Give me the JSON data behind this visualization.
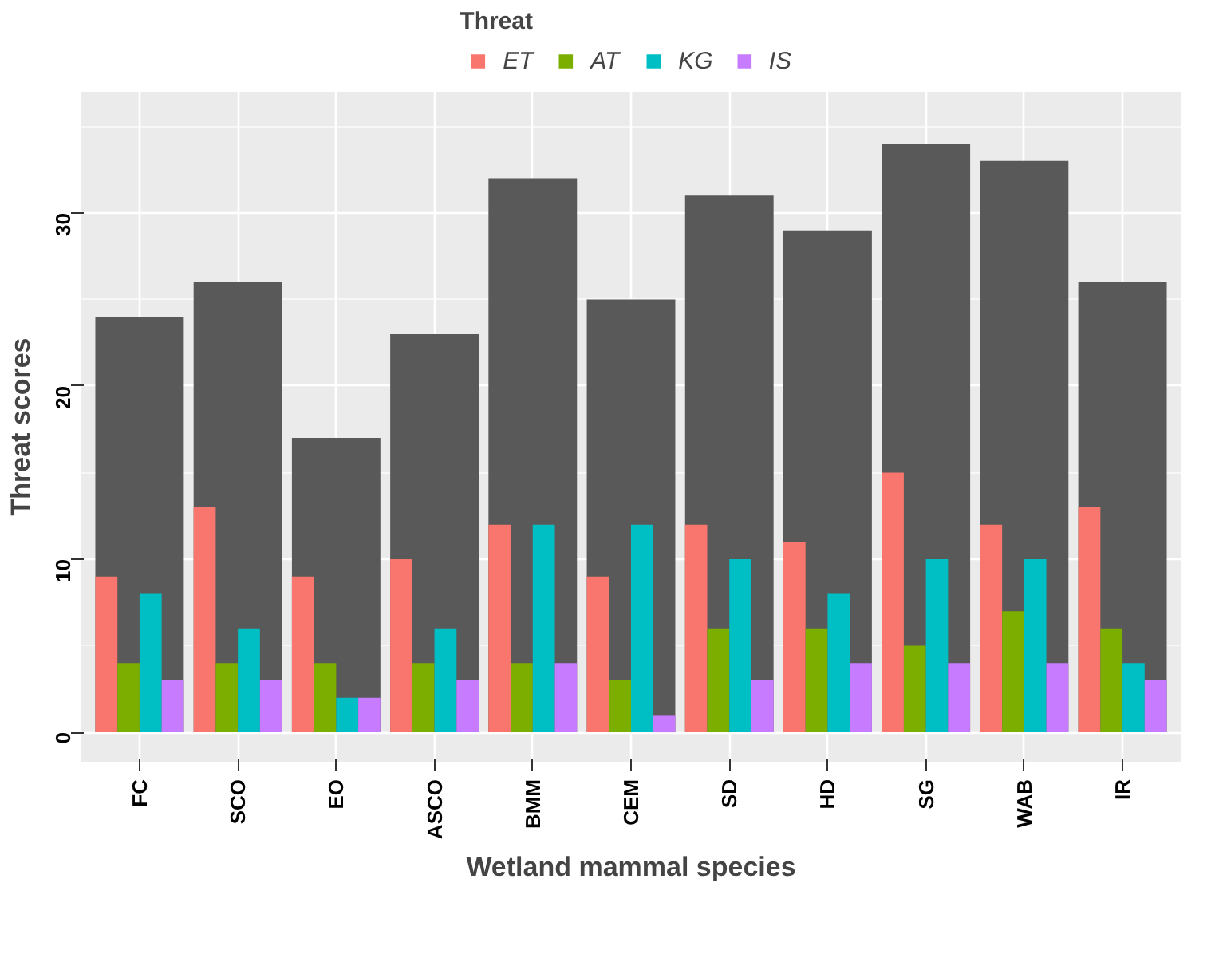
{
  "chart_data": {
    "type": "bar",
    "xlabel": "Wetland mammal species",
    "ylabel": "Threat scores",
    "legend_title": "Threat",
    "legend": "top",
    "categories": [
      "FC",
      "SCO",
      "EO",
      "ASCO",
      "BMM",
      "CEM",
      "SD",
      "HD",
      "SG",
      "WAB",
      "IR"
    ],
    "series": [
      {
        "color": "#595959",
        "values": [
          24,
          26,
          17,
          23,
          32,
          25,
          31,
          29,
          34,
          33,
          26
        ]
      },
      {
        "name": "ET",
        "color": "#f8766d",
        "values": [
          9,
          13,
          9,
          10,
          12,
          9,
          12,
          11,
          15,
          12,
          13
        ]
      },
      {
        "name": "AT",
        "color": "#7cae00",
        "values": [
          4,
          4,
          4,
          4,
          4,
          3,
          6,
          6,
          5,
          7,
          6
        ]
      },
      {
        "name": "KG",
        "color": "#00bfc4",
        "values": [
          8,
          6,
          2,
          6,
          12,
          12,
          10,
          8,
          10,
          10,
          4
        ]
      },
      {
        "name": "IS",
        "color": "#c77cff",
        "values": [
          3,
          3,
          2,
          3,
          4,
          1,
          3,
          4,
          4,
          4,
          3
        ]
      }
    ],
    "ylim": [
      -1.7,
      37.0
    ],
    "yticks": [
      0,
      10,
      20,
      30
    ],
    "grid": true
  }
}
